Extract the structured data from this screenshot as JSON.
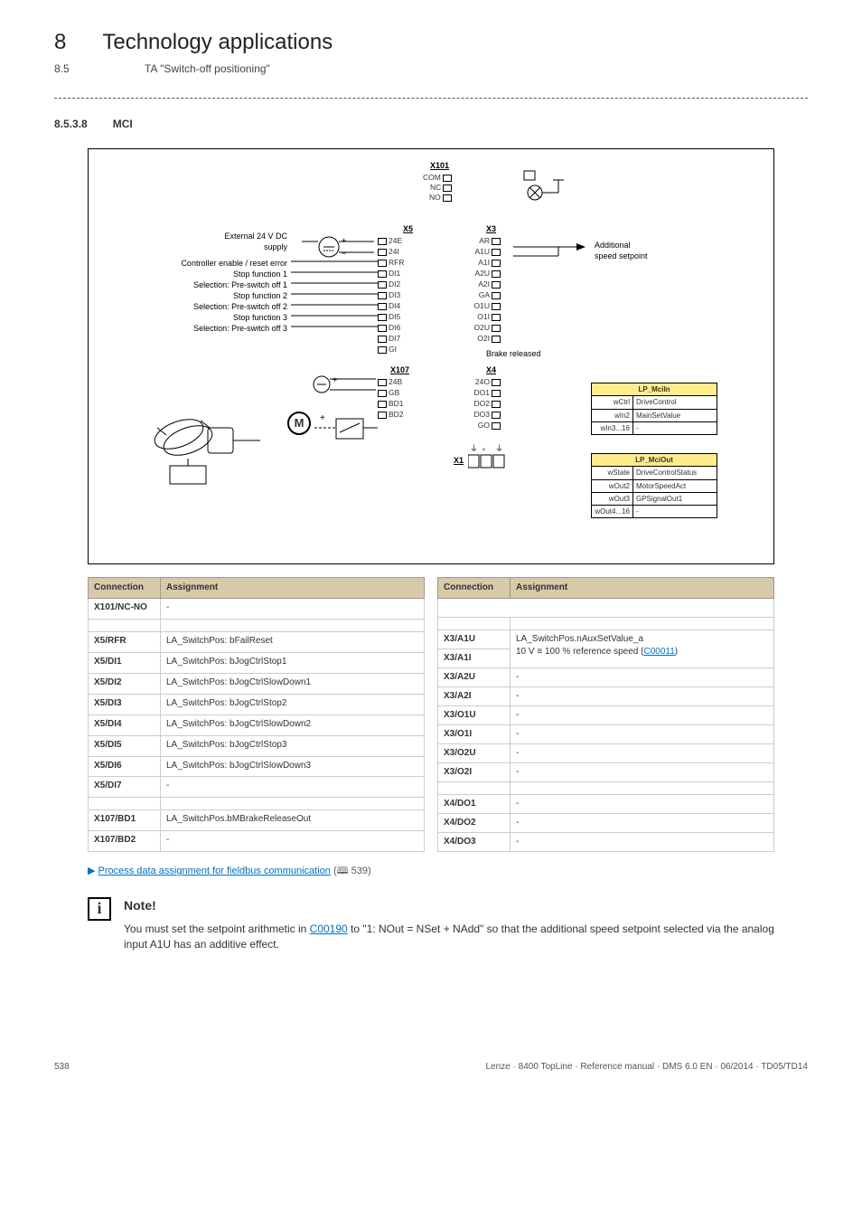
{
  "header": {
    "chapter_num": "8",
    "chapter_title": "Technology applications",
    "sub_num": "8.5",
    "sub_title": "TA \"Switch-off positioning\""
  },
  "section": {
    "num": "8.5.3.8",
    "title": "MCI"
  },
  "diagram": {
    "x101_title": "X101",
    "x101_terms": [
      "COM",
      "NC",
      "NO"
    ],
    "left_labels": [
      "External 24 V DC",
      "supply",
      "Controller enable / reset error",
      "Stop function 1",
      "Selection: Pre-switch off 1",
      "Stop function 2",
      "Selection: Pre-switch off 2",
      "Stop function 3",
      "Selection: Pre-switch off 3"
    ],
    "x5_title": "X5",
    "x5_terms": [
      "24E",
      "24I",
      "RFR",
      "DI1",
      "DI2",
      "DI3",
      "DI4",
      "DI5",
      "DI6",
      "DI7",
      "GI"
    ],
    "x3_title": "X3",
    "x3_terms": [
      "AR",
      "A1U",
      "A1I",
      "A2U",
      "A2I",
      "GA",
      "O1U",
      "O1I",
      "O2U",
      "O2I"
    ],
    "right_label1": "Additional",
    "right_label2": "speed setpoint",
    "x107_title": "X107",
    "x107_terms": [
      "24B",
      "GB",
      "BD1",
      "BD2"
    ],
    "x4_title": "X4",
    "x4_terms": [
      "24O",
      "DO1",
      "DO2",
      "DO3",
      "GO"
    ],
    "brake_released": "Brake released",
    "motor_label": "M",
    "x1_title": "X1",
    "mciin": {
      "title": "LP_MciIn",
      "rows": [
        [
          "wCtrl",
          "DriveControl"
        ],
        [
          "wIn2",
          "MainSetValue"
        ],
        [
          "wIn3...16",
          "-"
        ]
      ]
    },
    "mciout": {
      "title": "LP_MciOut",
      "rows": [
        [
          "wState",
          "DriveControlStatus"
        ],
        [
          "wOut2",
          "MotorSpeedAct"
        ],
        [
          "wOut3",
          "GPSignalOut1"
        ],
        [
          "wOut4...16",
          "-"
        ]
      ]
    }
  },
  "table_headers": {
    "connection": "Connection",
    "assignment": "Assignment"
  },
  "left_table": [
    {
      "c": "X101/NC-NO",
      "a": "-"
    },
    {
      "spacer": true
    },
    {
      "c": "X5/RFR",
      "a": "LA_SwitchPos: bFailReset"
    },
    {
      "c": "X5/DI1",
      "a": "LA_SwitchPos: bJogCtrlStop1"
    },
    {
      "c": "X5/DI2",
      "a": "LA_SwitchPos: bJogCtrlSlowDown1"
    },
    {
      "c": "X5/DI3",
      "a": "LA_SwitchPos: bJogCtrlStop2"
    },
    {
      "c": "X5/DI4",
      "a": "LA_SwitchPos: bJogCtrlSlowDown2"
    },
    {
      "c": "X5/DI5",
      "a": "LA_SwitchPos: bJogCtrlStop3"
    },
    {
      "c": "X5/DI6",
      "a": "LA_SwitchPos: bJogCtrlSlowDown3"
    },
    {
      "c": "X5/DI7",
      "a": "-"
    },
    {
      "spacer": true
    },
    {
      "c": "X107/BD1",
      "a": "LA_SwitchPos.bMBrakeReleaseOut"
    },
    {
      "c": "X107/BD2",
      "a": "-"
    }
  ],
  "right_table": [
    {
      "blank": true
    },
    {
      "spacer": true
    },
    {
      "c": "X3/A1U",
      "a": "LA_SwitchPos.nAuxSetValue_a",
      "rs": 2
    },
    {
      "c": "X3/A1I",
      "a2": "10 V ≡ 100 % reference speed (",
      "link": "C00011",
      "a3": ")"
    },
    {
      "c": "X3/A2U",
      "a": "-"
    },
    {
      "c": "X3/A2I",
      "a": "-"
    },
    {
      "c": "X3/O1U",
      "a": "-"
    },
    {
      "c": "X3/O1I",
      "a": "-"
    },
    {
      "c": "X3/O2U",
      "a": "-"
    },
    {
      "c": "X3/O2I",
      "a": "-"
    },
    {
      "spacer": true
    },
    {
      "c": "X4/DO1",
      "a": "-"
    },
    {
      "c": "X4/DO2",
      "a": "-"
    },
    {
      "c": "X4/DO3",
      "a": "-"
    }
  ],
  "process_link": {
    "text": "Process data assignment for fieldbus communication",
    "pageref": " 539)"
  },
  "note": {
    "heading": "Note!",
    "text_pre": "You must set the setpoint arithmetic in ",
    "code_link": "C00190",
    "text_post": " to \"1: NOut = NSet + NAdd\" so that the additional speed setpoint selected via the analog input A1U has an additive effect."
  },
  "footer": {
    "page": "538",
    "doc": "Lenze · 8400 TopLine · Reference manual · DMS 6.0 EN · 06/2014 · TD05/TD14"
  },
  "colors": {
    "table_header_bg": "#d8c9a8",
    "link": "#0070c0",
    "mini_hd": "#ffec8b"
  }
}
